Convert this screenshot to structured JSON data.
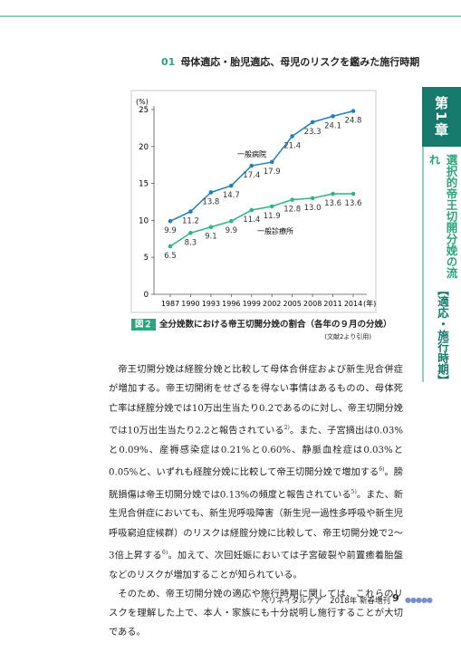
{
  "header": {
    "section_number": "01",
    "section_title": "母体適応・胎児適応、母児のリスクを鑑みた施行時期"
  },
  "side_tab": {
    "chapter": "第1章",
    "title": "選択的帝王切開分娩の流れ",
    "subtitle": "【適応・施行時期】"
  },
  "chart_data": {
    "type": "line",
    "y_unit": "(%)",
    "x_unit": "(年)",
    "categories": [
      "1987",
      "1990",
      "1993",
      "1996",
      "1999",
      "2002",
      "2005",
      "2008",
      "2011",
      "2014"
    ],
    "ylim": [
      0,
      25
    ],
    "yticks": [
      0,
      5,
      10,
      15,
      20,
      25
    ],
    "series": [
      {
        "name": "一般病院",
        "color": "#1f7fbf",
        "values": [
          9.9,
          11.2,
          13.8,
          14.7,
          17.4,
          17.9,
          21.4,
          23.3,
          24.1,
          24.8
        ],
        "value_labels": [
          "9.9",
          "11.2",
          "13.8",
          "14.7",
          "17.4",
          "17.9",
          "21.4",
          "23.3",
          "24.1",
          "24.8"
        ]
      },
      {
        "name": "一般診療所",
        "color": "#2db488",
        "values": [
          6.5,
          8.3,
          9.1,
          9.9,
          11.4,
          11.9,
          12.8,
          13.0,
          13.6,
          13.6
        ],
        "value_labels": [
          "6.5",
          "8.3",
          "9.1",
          "9.9",
          "11.4",
          "11.9",
          "12.8",
          "13.0",
          "13.6",
          "13.6"
        ]
      }
    ]
  },
  "figure": {
    "number": "図２",
    "caption": "全分娩数における帝王切開分娩の割合（各年の９月の分娩）",
    "source": "(文献2より引用)"
  },
  "body": {
    "paragraphs": [
      {
        "parts": [
          "帝王切開分娩は経腟分娩と比較して母体合併症および新生児合併症が増加する。帝王切開術をせざるを得ない事情はあるものの、母体死亡率は経腟分娩では10万出生当たり0.2であるのに対し、帝王切開分娩では10万出生当たり2.2と報告されている",
          "2)",
          "。また、子宮摘出は0.03%と0.09%、産褥感染症は0.21%と0.60%、静脈血栓症は0.03%と0.05%と、いずれも経腟分娩に比較して帝王切開分娩で増加する",
          "6)",
          "。膀胱損傷は帝王切開分娩では0.13%の頻度と報告されている",
          "5)",
          "。また、新生児合併症においても、新生児呼吸障害（新生児一過性多呼吸や新生児呼吸窮迫症候群）のリスクは経腟分娩に比較して、帝王切開分娩で2〜3倍上昇する",
          "6)",
          "。加えて、次回妊娠においては子宮破裂や前置癒着胎盤などのリスクが増加することが知られている。"
        ]
      },
      {
        "parts": [
          "そのため、帝王切開分娩の適応や施行時期に関しては、これらのリスクを理解した上で、本人・家族にも十分説明し施行することが大切である。"
        ]
      }
    ]
  },
  "footer": {
    "publication": "ペリネイタルケア　2018年 新春増刊",
    "page": "9"
  }
}
